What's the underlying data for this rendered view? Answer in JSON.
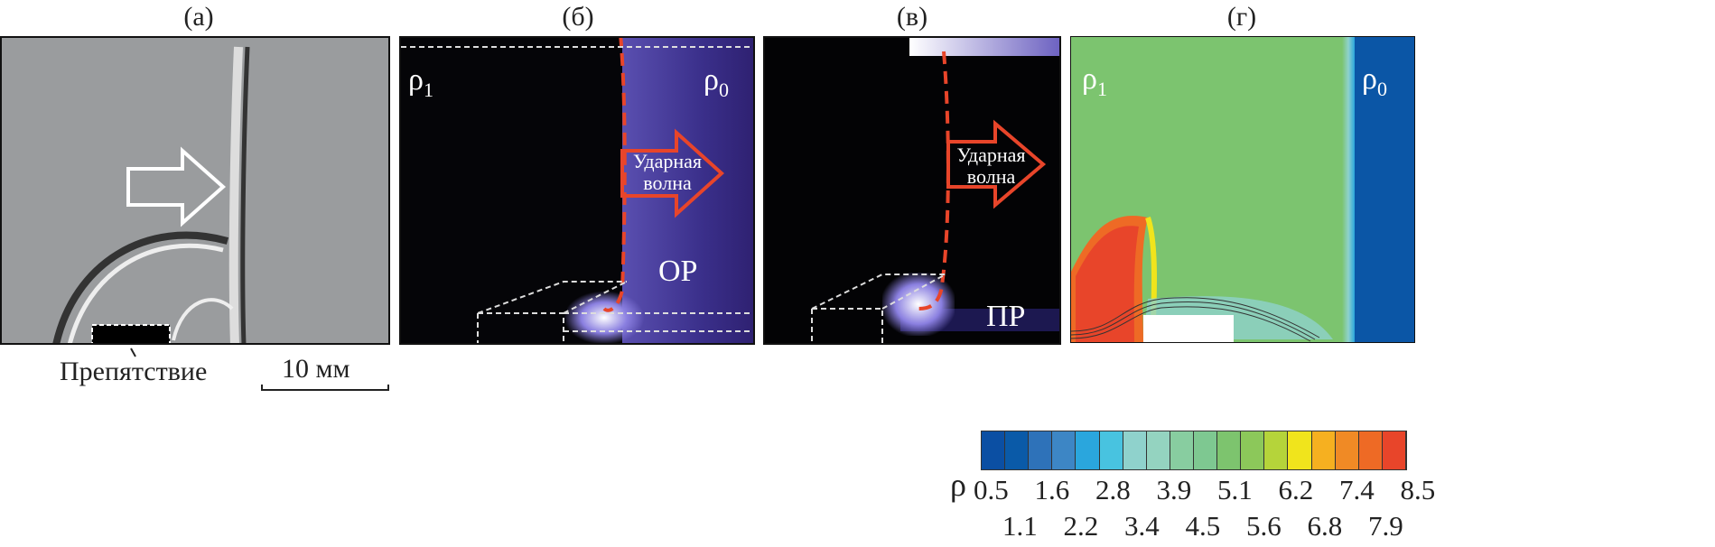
{
  "panels": {
    "a": {
      "label": "(а)",
      "obstacle_label": "Препятствие",
      "scale_label": "10 мм"
    },
    "b": {
      "label": "(б)",
      "rho_left": "ρ",
      "rho_left_sub": "1",
      "rho_right": "ρ",
      "rho_right_sub": "0",
      "wave_line1": "Ударная",
      "wave_line2": "волна",
      "region": "ОР"
    },
    "c": {
      "label": "(в)",
      "wave_line1": "Ударная",
      "wave_line2": "волна",
      "region": "ПР"
    },
    "d": {
      "label": "(г)",
      "rho_left": "ρ",
      "rho_left_sub": "1",
      "rho_right": "ρ",
      "rho_right_sub": "0"
    }
  },
  "colorbar": {
    "symbol": "ρ",
    "top_ticks": [
      "0.5",
      "1.6",
      "2.8",
      "3.9",
      "5.1",
      "6.2",
      "7.4",
      "8.5"
    ],
    "bottom_ticks": [
      "1.1",
      "2.2",
      "3.4",
      "4.5",
      "5.6",
      "6.8",
      "7.9"
    ],
    "colors": [
      "#0b4fa3",
      "#0a5aa8",
      "#2e72b9",
      "#3d86c5",
      "#2aa6dd",
      "#48c3e0",
      "#8fd2cc",
      "#94d3c0",
      "#88cda0",
      "#7ec891",
      "#7dc46e",
      "#8cc85a",
      "#b5d43a",
      "#f0e41c",
      "#f6b020",
      "#f08a25",
      "#ee6a25",
      "#e8452a"
    ],
    "accent_shock": "#e8452a"
  }
}
